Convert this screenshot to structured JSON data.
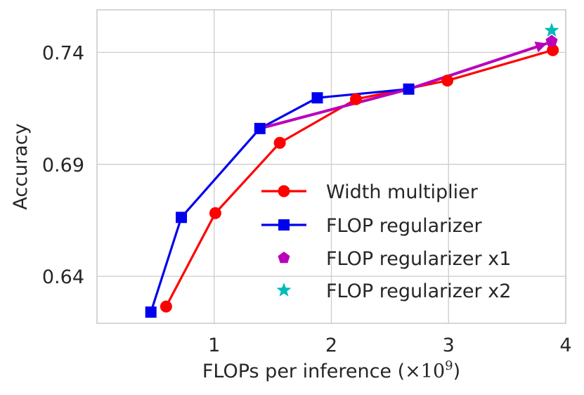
{
  "chart_data": {
    "type": "line",
    "title": "",
    "xlabel": "FLOPs per inference (",
    "xlabel_unit": "×10",
    "xlabel_unit_exp": "9",
    "xlabel_close": ")",
    "ylabel": "Accuracy",
    "xlim": [
      0,
      4
    ],
    "ylim": [
      0.619,
      0.759
    ],
    "xticks": [
      1,
      2,
      3,
      4
    ],
    "xtick_labels": [
      "1",
      "2",
      "3",
      "4"
    ],
    "yticks": [
      0.64,
      0.69,
      0.74
    ],
    "ytick_labels": [
      "0.64",
      "0.69",
      "0.74"
    ],
    "grid": true,
    "legend_position": "lower-right",
    "series": [
      {
        "name": "Width multiplier",
        "color": "#ff0000",
        "marker": "circle",
        "line": true,
        "x": [
          0.59,
          1.01,
          1.56,
          2.21,
          2.99,
          3.89
        ],
        "y": [
          0.6265,
          0.6682,
          0.6996,
          0.7191,
          0.7274,
          0.741
        ]
      },
      {
        "name": "FLOP regularizer",
        "color": "#0000ee",
        "marker": "square",
        "line": true,
        "x": [
          0.46,
          0.72,
          1.39,
          1.88,
          2.66
        ],
        "y": [
          0.624,
          0.6663,
          0.706,
          0.7197,
          0.7236
        ]
      },
      {
        "name": "FLOP regularizer x1",
        "color": "#bb00bb",
        "marker": "pentagon",
        "line": false,
        "x": [
          3.88
        ],
        "y": [
          0.745
        ]
      },
      {
        "name": "FLOP regularizer x2",
        "color": "#00bbbb",
        "marker": "star",
        "line": false,
        "x": [
          3.88
        ],
        "y": [
          0.7498
        ]
      }
    ],
    "annotation_arrow": {
      "color": "#bb00bb",
      "from": [
        1.39,
        0.706
      ],
      "through": [
        2.66,
        0.7236
      ],
      "to": [
        3.84,
        0.744
      ]
    }
  }
}
